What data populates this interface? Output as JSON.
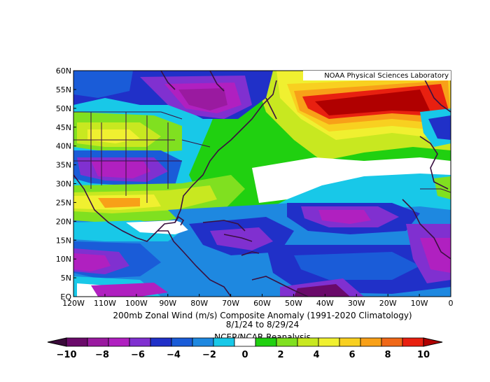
{
  "credit": "NOAA Physical Sciences Laboratory",
  "title_line1": "200mb Zonal Wind (m/s) Composite Anomaly (1991-2020 Climatology)",
  "title_line2": "8/1/24 to 8/29/24",
  "source": "NCEP/NCAR Reanalysis",
  "lat_labels": [
    "60N",
    "55N",
    "50N",
    "45N",
    "40N",
    "35N",
    "30N",
    "25N",
    "20N",
    "15N",
    "10N",
    "5N",
    "EQ"
  ],
  "lon_labels": [
    "120W",
    "110W",
    "100W",
    "90W",
    "80W",
    "70W",
    "60W",
    "50W",
    "40W",
    "30W",
    "20W",
    "10W",
    "0"
  ],
  "colorbar": {
    "tick_labels": [
      "-10",
      "-8",
      "-6",
      "-4",
      "-2",
      "0",
      "2",
      "4",
      "6",
      "8",
      "10"
    ],
    "colors": [
      "#3a0a3a",
      "#6a0a6a",
      "#9a1aa0",
      "#b020c0",
      "#8030d0",
      "#2030c8",
      "#1a5cd8",
      "#1e88e0",
      "#18c8e8",
      "#ffffff",
      "#20d010",
      "#80e020",
      "#c8e820",
      "#f0f030",
      "#f8d020",
      "#f8a018",
      "#f06818",
      "#e82010",
      "#b00000"
    ]
  },
  "overlay_colors": {
    "coast": "#3a1040",
    "border": "#3a1040"
  }
}
